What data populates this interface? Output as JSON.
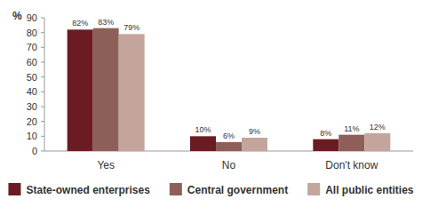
{
  "chart_data": {
    "type": "bar",
    "y_label": "%",
    "categories": [
      "Yes",
      "No",
      "Don't know"
    ],
    "series": [
      {
        "name": "State-owned enterprises",
        "color": "#6b1c22",
        "values": [
          82,
          10,
          8
        ],
        "value_labels": [
          "82%",
          "10%",
          "8%"
        ]
      },
      {
        "name": "Central government",
        "color": "#8e5f58",
        "values": [
          83,
          6,
          11
        ],
        "value_labels": [
          "83%",
          "6%",
          "11%"
        ]
      },
      {
        "name": "All public entities",
        "color": "#c3a59c",
        "values": [
          79,
          9,
          12
        ],
        "value_labels": [
          "79%",
          "9%",
          "12%"
        ]
      }
    ],
    "ylim": [
      0,
      90
    ],
    "yticks": [
      0,
      10,
      20,
      30,
      40,
      50,
      60,
      70,
      80,
      90
    ],
    "grid": false,
    "legend": "bottom",
    "data_labels": true
  }
}
